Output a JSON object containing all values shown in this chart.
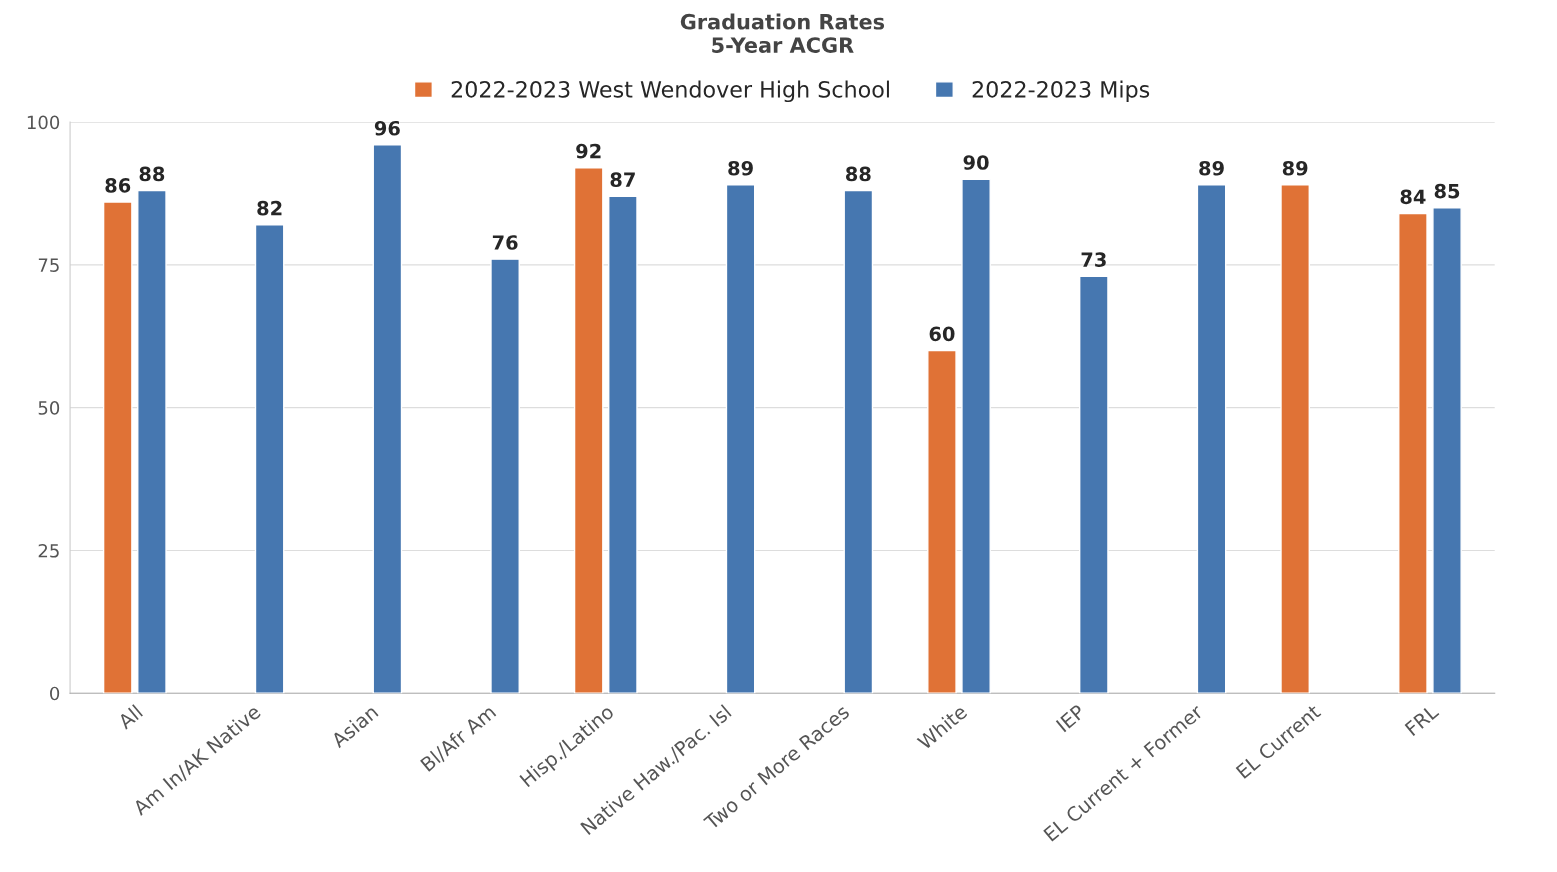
{
  "chart_data": {
    "type": "bar",
    "title": "Graduation Rates\n5-Year ACGR",
    "categories": [
      "All",
      "Am In/AK Native",
      "Asian",
      "Bl/Afr Am",
      "Hisp./Latino",
      "Native Haw./Pac. Isl",
      "Two or More Races",
      "White",
      "IEP",
      "EL Current + Former",
      "EL Current",
      "FRL"
    ],
    "series": [
      {
        "name": "2022-2023 West Wendover High School",
        "color": "#e07236",
        "values": [
          86,
          null,
          null,
          null,
          92,
          null,
          null,
          60,
          null,
          null,
          89,
          84
        ]
      },
      {
        "name": "2022-2023 Mips",
        "color": "#4677b0",
        "values": [
          88,
          82,
          96,
          76,
          87,
          89,
          88,
          90,
          73,
          89,
          null,
          85
        ]
      }
    ],
    "ylim": [
      0,
      100
    ],
    "yticks": [
      0,
      25,
      50,
      75,
      100
    ],
    "grid": "y",
    "legend": "top",
    "data_labels": true
  }
}
